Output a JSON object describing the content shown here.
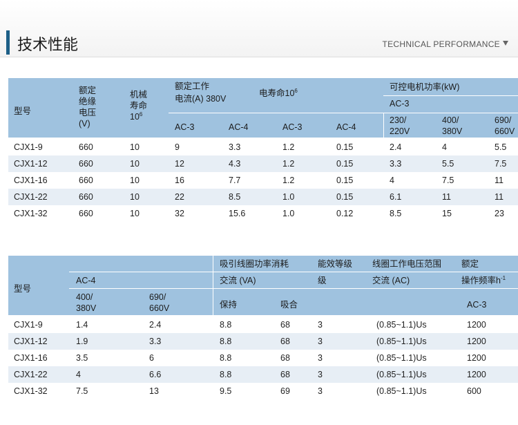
{
  "header": {
    "title": "技术性能",
    "subtitle": "TECHNICAL PERFORMANCE",
    "arrow_icon": "triangle-down-icon"
  },
  "table1": {
    "headers": {
      "model": "型号",
      "insulation": [
        "额定",
        "绝缘",
        "电压",
        "(V)"
      ],
      "mech_life": [
        "机械",
        "寿命",
        "10"
      ],
      "mech_life_sup": "6",
      "rated_current": [
        "额定工作",
        "电流(A) 380V"
      ],
      "elec_life": "电寿命10",
      "elec_life_sup": "6",
      "motor_power": "可控电机功率(kW)",
      "motor_power_sub": "AC-3",
      "cur_ac3": "AC-3",
      "cur_ac4": "AC-4",
      "life_ac3": "AC-3",
      "life_ac4": "AC-4",
      "p230": [
        "230/",
        "220V"
      ],
      "p400": [
        "400/",
        "380V"
      ],
      "p690": [
        "690/",
        "660V"
      ]
    },
    "rows": [
      [
        "CJX1-9",
        "660",
        "10",
        "9",
        "3.3",
        "1.2",
        "0.15",
        "2.4",
        "4",
        "5.5"
      ],
      [
        "CJX1-12",
        "660",
        "10",
        "12",
        "4.3",
        "1.2",
        "0.15",
        "3.3",
        "5.5",
        "7.5"
      ],
      [
        "CJX1-16",
        "660",
        "10",
        "16",
        "7.7",
        "1.2",
        "0.15",
        "4",
        "7.5",
        "11"
      ],
      [
        "CJX1-22",
        "660",
        "10",
        "22",
        "8.5",
        "1.0",
        "0.15",
        "6.1",
        "11",
        "11"
      ],
      [
        "CJX1-32",
        "660",
        "10",
        "32",
        "15.6",
        "1.0",
        "0.12",
        "8.5",
        "15",
        "23"
      ]
    ]
  },
  "table2": {
    "headers": {
      "model": "型号",
      "ac4": "AC-4",
      "p400": [
        "400/",
        "380V"
      ],
      "p690": [
        "690/",
        "660V"
      ],
      "coil_power": "吸引线圈功率消耗",
      "coil_power_sub": "交流 (VA)",
      "hold": "保持",
      "pull": "吸合",
      "eff": "能效等级",
      "eff_sub": "级",
      "coil_voltage": "线圈工作电压范围",
      "coil_voltage_sub": "交流 (AC)",
      "freq": "额定",
      "freq2": "操作频率h",
      "freq_sup": "-1",
      "freq_ac3": "AC-3"
    },
    "rows": [
      [
        "CJX1-9",
        "1.4",
        "2.4",
        "8.8",
        "68",
        "3",
        "(0.85~1.1)Us",
        "1200"
      ],
      [
        "CJX1-12",
        "1.9",
        "3.3",
        "8.8",
        "68",
        "3",
        "(0.85~1.1)Us",
        "1200"
      ],
      [
        "CJX1-16",
        "3.5",
        "6",
        "8.8",
        "68",
        "3",
        "(0.85~1.1)Us",
        "1200"
      ],
      [
        "CJX1-22",
        "4",
        "6.6",
        "8.8",
        "68",
        "3",
        "(0.85~1.1)Us",
        "1200"
      ],
      [
        "CJX1-32",
        "7.5",
        "13",
        "9.5",
        "69",
        "3",
        "(0.85~1.1)Us",
        "600"
      ]
    ]
  }
}
